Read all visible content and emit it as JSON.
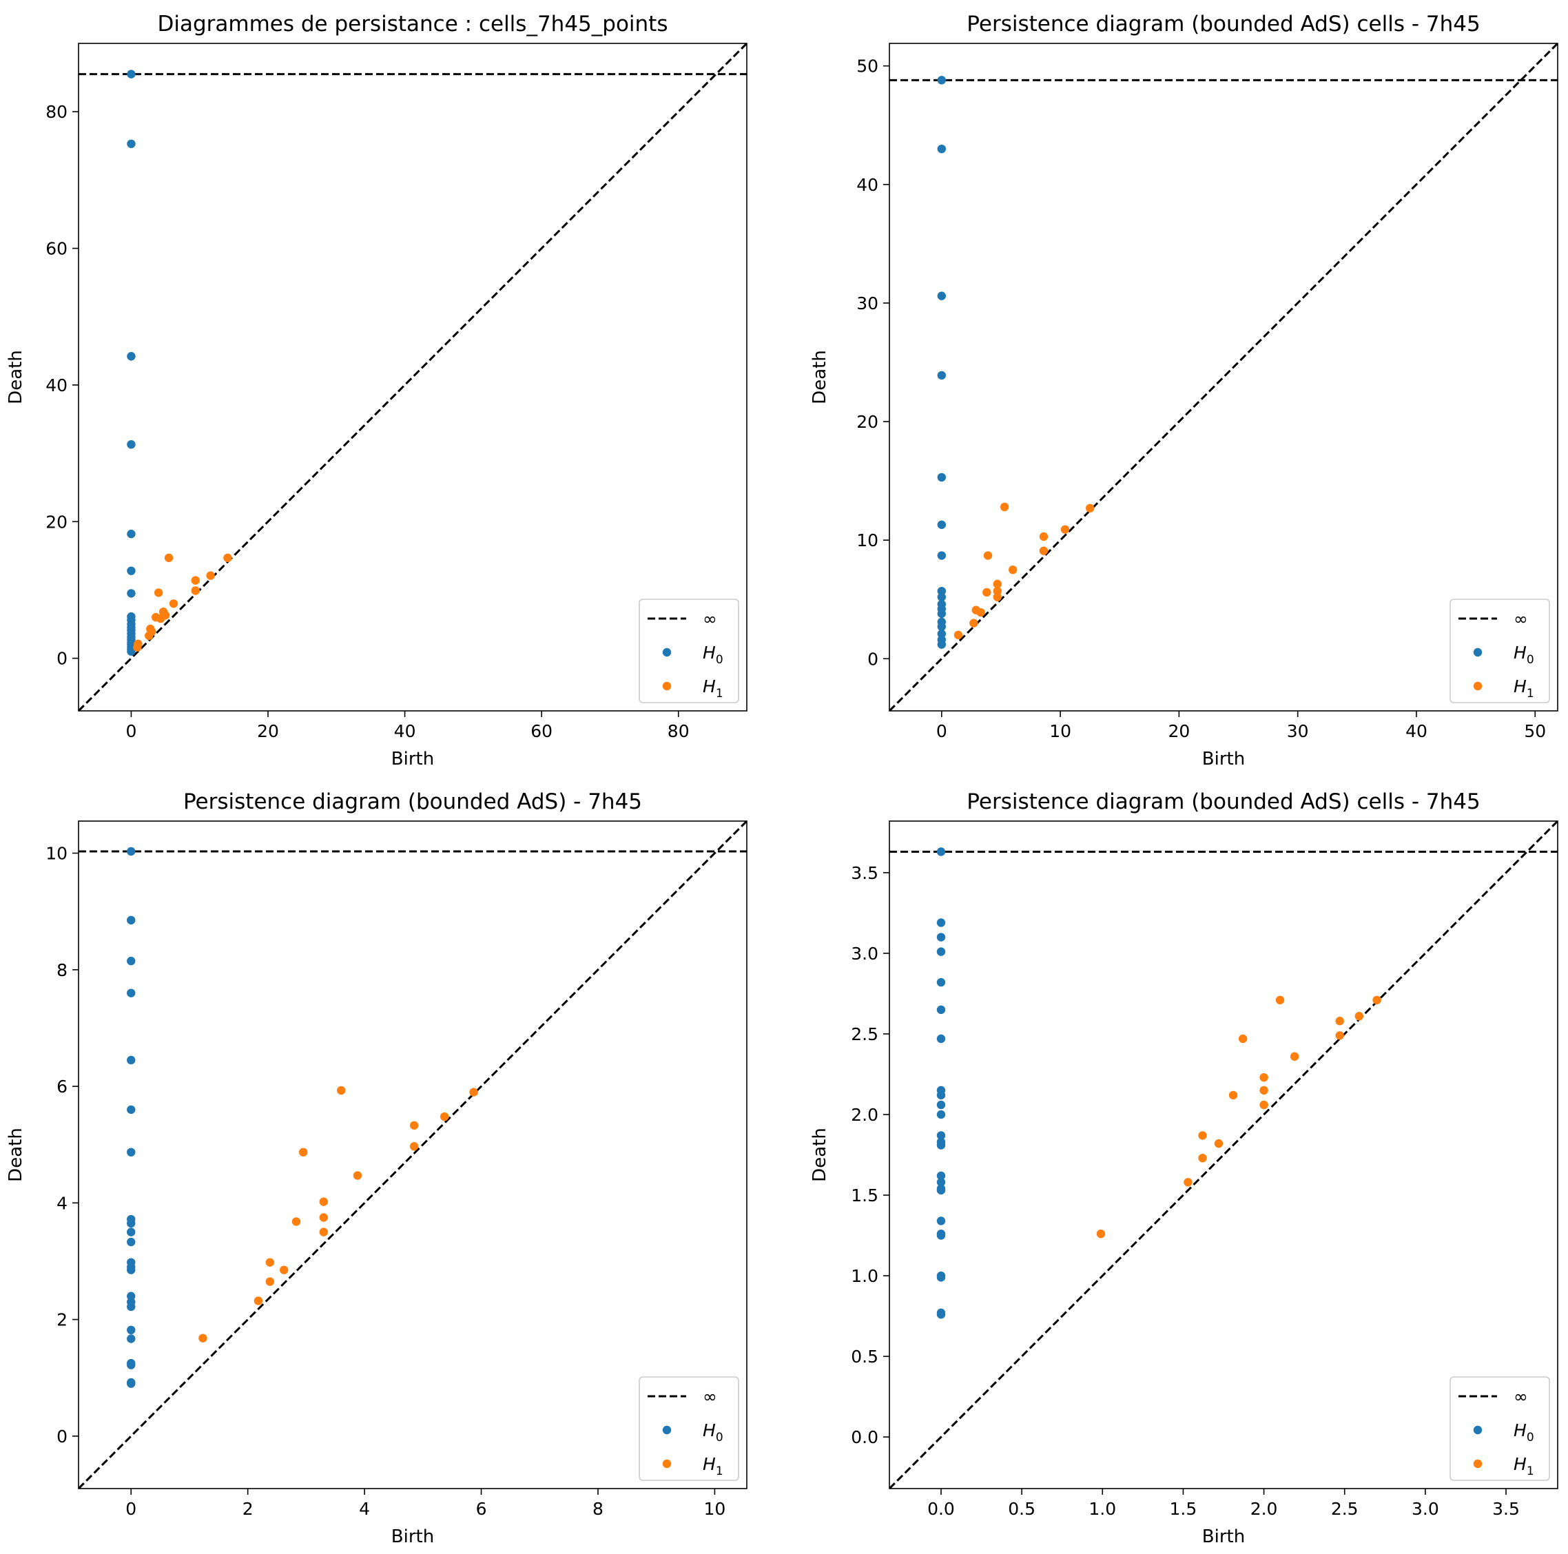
{
  "figure": {
    "colors": {
      "h0": "#1f77b4",
      "h1": "#ff7f0e",
      "inf_line": "#000000",
      "diagonal": "#000000"
    }
  },
  "chart_data": [
    {
      "type": "scatter",
      "title": "Diagrammes de persistance : cells_7h45_points",
      "xlabel": "Birth",
      "ylabel": "Death",
      "xlim": [
        -7.7,
        90.0
      ],
      "ylim": [
        -7.7,
        90.0
      ],
      "xticks": [
        0,
        20,
        40,
        60,
        80
      ],
      "yticks": [
        0,
        20,
        40,
        60,
        80
      ],
      "tick_decimals": 0,
      "inf_value": 85.5,
      "legend": {
        "location": "lower right",
        "inf_label": "∞",
        "h0_label": "H",
        "h0_sub": "0",
        "h1_label": "H",
        "h1_sub": "1"
      },
      "series": [
        {
          "name": "H0",
          "points": [
            [
              0,
              85.5
            ],
            [
              0,
              75.3
            ],
            [
              0,
              44.2
            ],
            [
              0,
              31.3
            ],
            [
              0,
              18.2
            ],
            [
              0,
              12.8
            ],
            [
              0,
              9.5
            ],
            [
              0,
              6.1
            ],
            [
              0,
              5.6
            ],
            [
              0,
              5.0
            ],
            [
              0,
              4.5
            ],
            [
              0,
              4.1
            ],
            [
              0,
              3.6
            ],
            [
              0,
              3.1
            ],
            [
              0,
              2.7
            ],
            [
              0,
              2.3
            ],
            [
              0,
              2.0
            ],
            [
              0,
              1.6
            ],
            [
              0,
              1.3
            ],
            [
              0,
              1.0
            ]
          ]
        },
        {
          "name": "H1",
          "points": [
            [
              5.5,
              14.7
            ],
            [
              14.1,
              14.7
            ],
            [
              11.6,
              12.1
            ],
            [
              9.4,
              11.4
            ],
            [
              4.0,
              9.6
            ],
            [
              9.4,
              9.9
            ],
            [
              6.2,
              8.0
            ],
            [
              4.7,
              6.8
            ],
            [
              3.6,
              6.0
            ],
            [
              5.0,
              6.3
            ],
            [
              4.3,
              5.8
            ],
            [
              2.8,
              4.3
            ],
            [
              3.0,
              3.9
            ],
            [
              2.6,
              3.3
            ],
            [
              1.0,
              2.1
            ],
            [
              0.9,
              1.6
            ]
          ]
        }
      ]
    },
    {
      "type": "scatter",
      "title": "Persistence diagram (bounded AdS) cells - 7h45",
      "xlabel": "Birth",
      "ylabel": "Death",
      "xlim": [
        -4.4,
        51.9
      ],
      "ylim": [
        -4.4,
        51.9
      ],
      "xticks": [
        0,
        10,
        20,
        30,
        40,
        50
      ],
      "yticks": [
        0,
        10,
        20,
        30,
        40,
        50
      ],
      "tick_decimals": 0,
      "inf_value": 48.8,
      "legend": {
        "location": "lower right",
        "inf_label": "∞",
        "h0_label": "H",
        "h0_sub": "0",
        "h1_label": "H",
        "h1_sub": "1"
      },
      "series": [
        {
          "name": "H0",
          "points": [
            [
              0,
              48.8
            ],
            [
              0,
              43.0
            ],
            [
              0,
              30.6
            ],
            [
              0,
              23.9
            ],
            [
              0,
              15.3
            ],
            [
              0,
              11.3
            ],
            [
              0,
              8.7
            ],
            [
              0,
              5.7
            ],
            [
              0,
              5.2
            ],
            [
              0,
              4.6
            ],
            [
              0,
              4.2
            ],
            [
              0,
              3.8
            ],
            [
              0,
              3.1
            ],
            [
              0,
              2.7
            ],
            [
              0,
              2.1
            ],
            [
              0,
              1.6
            ],
            [
              0,
              1.2
            ]
          ]
        },
        {
          "name": "H1",
          "points": [
            [
              5.3,
              12.8
            ],
            [
              12.5,
              12.7
            ],
            [
              10.4,
              10.9
            ],
            [
              8.6,
              10.3
            ],
            [
              3.9,
              8.7
            ],
            [
              8.6,
              9.1
            ],
            [
              6.0,
              7.5
            ],
            [
              3.8,
              5.6
            ],
            [
              4.7,
              6.3
            ],
            [
              4.7,
              5.7
            ],
            [
              4.7,
              5.2
            ],
            [
              2.9,
              4.1
            ],
            [
              3.3,
              3.9
            ],
            [
              2.7,
              3.0
            ],
            [
              1.4,
              2.0
            ]
          ]
        }
      ]
    },
    {
      "type": "scatter",
      "title": "Persistence diagram (bounded AdS) - 7h45",
      "xlabel": "Birth",
      "ylabel": "Death",
      "xlim": [
        -0.9,
        10.55
      ],
      "ylim": [
        -0.9,
        10.55
      ],
      "xticks": [
        0,
        2,
        4,
        6,
        8,
        10
      ],
      "yticks": [
        0,
        2,
        4,
        6,
        8,
        10
      ],
      "tick_decimals": 0,
      "inf_value": 10.03,
      "legend": {
        "location": "lower right",
        "inf_label": "∞",
        "h0_label": "H",
        "h0_sub": "0",
        "h1_label": "H",
        "h1_sub": "1"
      },
      "series": [
        {
          "name": "H0",
          "points": [
            [
              0,
              10.03
            ],
            [
              0,
              8.85
            ],
            [
              0,
              8.15
            ],
            [
              0,
              7.6
            ],
            [
              0,
              6.45
            ],
            [
              0,
              5.6
            ],
            [
              0,
              4.87
            ],
            [
              0,
              3.72
            ],
            [
              0,
              3.65
            ],
            [
              0,
              3.5
            ],
            [
              0,
              3.33
            ],
            [
              0,
              2.98
            ],
            [
              0,
              2.9
            ],
            [
              0,
              2.85
            ],
            [
              0,
              2.4
            ],
            [
              0,
              2.3
            ],
            [
              0,
              2.22
            ],
            [
              0,
              1.82
            ],
            [
              0,
              1.67
            ],
            [
              0,
              1.25
            ],
            [
              0,
              1.22
            ],
            [
              0,
              0.92
            ],
            [
              0,
              0.9
            ]
          ]
        },
        {
          "name": "H1",
          "points": [
            [
              3.6,
              5.93
            ],
            [
              5.87,
              5.9
            ],
            [
              5.37,
              5.48
            ],
            [
              4.85,
              5.33
            ],
            [
              4.85,
              4.97
            ],
            [
              2.95,
              4.87
            ],
            [
              3.88,
              4.47
            ],
            [
              3.3,
              4.02
            ],
            [
              2.83,
              3.68
            ],
            [
              3.3,
              3.75
            ],
            [
              3.3,
              3.5
            ],
            [
              2.38,
              2.98
            ],
            [
              2.62,
              2.85
            ],
            [
              2.38,
              2.65
            ],
            [
              2.18,
              2.32
            ],
            [
              1.23,
              1.68
            ]
          ]
        }
      ]
    },
    {
      "type": "scatter",
      "title": "Persistence diagram (bounded AdS) cells - 7h45",
      "xlabel": "Birth",
      "ylabel": "Death",
      "xlim": [
        -0.32,
        3.82
      ],
      "ylim": [
        -0.32,
        3.82
      ],
      "xticks": [
        0.0,
        0.5,
        1.0,
        1.5,
        2.0,
        2.5,
        3.0,
        3.5
      ],
      "yticks": [
        0.0,
        0.5,
        1.0,
        1.5,
        2.0,
        2.5,
        3.0,
        3.5
      ],
      "tick_decimals": 1,
      "inf_value": 3.63,
      "legend": {
        "location": "lower right",
        "inf_label": "∞",
        "h0_label": "H",
        "h0_sub": "0",
        "h1_label": "H",
        "h1_sub": "1"
      },
      "series": [
        {
          "name": "H0",
          "points": [
            [
              0,
              3.63
            ],
            [
              0,
              3.19
            ],
            [
              0,
              3.1
            ],
            [
              0,
              3.01
            ],
            [
              0,
              2.82
            ],
            [
              0,
              2.65
            ],
            [
              0,
              2.47
            ],
            [
              0,
              2.15
            ],
            [
              0,
              2.12
            ],
            [
              0,
              2.06
            ],
            [
              0,
              2.0
            ],
            [
              0,
              1.87
            ],
            [
              0,
              1.83
            ],
            [
              0,
              1.81
            ],
            [
              0,
              1.62
            ],
            [
              0,
              1.58
            ],
            [
              0,
              1.54
            ],
            [
              0,
              1.53
            ],
            [
              0,
              1.34
            ],
            [
              0,
              1.26
            ],
            [
              0,
              1.25
            ],
            [
              0,
              1.0
            ],
            [
              0,
              0.99
            ],
            [
              0,
              0.77
            ],
            [
              0,
              0.76
            ]
          ]
        },
        {
          "name": "H1",
          "points": [
            [
              2.1,
              2.71
            ],
            [
              2.7,
              2.71
            ],
            [
              2.59,
              2.61
            ],
            [
              2.47,
              2.58
            ],
            [
              2.47,
              2.49
            ],
            [
              1.87,
              2.47
            ],
            [
              2.19,
              2.36
            ],
            [
              2.0,
              2.23
            ],
            [
              1.81,
              2.12
            ],
            [
              2.0,
              2.15
            ],
            [
              2.0,
              2.06
            ],
            [
              1.62,
              1.87
            ],
            [
              1.72,
              1.82
            ],
            [
              1.62,
              1.73
            ],
            [
              1.53,
              1.58
            ],
            [
              0.99,
              1.26
            ]
          ]
        }
      ]
    }
  ]
}
